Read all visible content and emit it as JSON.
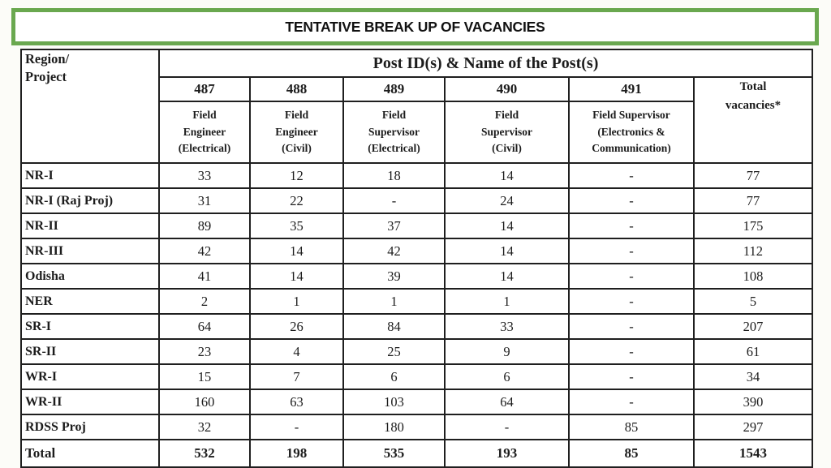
{
  "title": "TENTATIVE BREAK UP OF VACANCIES",
  "colors": {
    "accent_green": "#6aa84f",
    "border_black": "#1f1f1f",
    "background": "#ffffff"
  },
  "table": {
    "region_header": "Region/\nProject",
    "post_group_header": "Post ID(s) & Name of the Post(s)",
    "total_header": "Total\nvacancies*",
    "columns": [
      {
        "id": "487",
        "name": "Field\nEngineer\n(Electrical)"
      },
      {
        "id": "488",
        "name": "Field\nEngineer\n(Civil)"
      },
      {
        "id": "489",
        "name": "Field\nSupervisor\n(Electrical)"
      },
      {
        "id": "490",
        "name": "Field\nSupervisor\n(Civil)"
      },
      {
        "id": "491",
        "name": "Field Supervisor\n(Electronics &\nCommunication)"
      }
    ],
    "rows": [
      {
        "region": "NR-I",
        "values": [
          "33",
          "12",
          "18",
          "14",
          "-",
          "77"
        ]
      },
      {
        "region": "NR-I (Raj Proj)",
        "values": [
          "31",
          "22",
          "-",
          "24",
          "-",
          "77"
        ]
      },
      {
        "region": "NR-II",
        "values": [
          "89",
          "35",
          "37",
          "14",
          "-",
          "175"
        ]
      },
      {
        "region": "NR-III",
        "values": [
          "42",
          "14",
          "42",
          "14",
          "-",
          "112"
        ]
      },
      {
        "region": "Odisha",
        "values": [
          "41",
          "14",
          "39",
          "14",
          "-",
          "108"
        ]
      },
      {
        "region": "NER",
        "values": [
          "2",
          "1",
          "1",
          "1",
          "-",
          "5"
        ]
      },
      {
        "region": "SR-I",
        "values": [
          "64",
          "26",
          "84",
          "33",
          "-",
          "207"
        ]
      },
      {
        "region": "SR-II",
        "values": [
          "23",
          "4",
          "25",
          "9",
          "-",
          "61"
        ]
      },
      {
        "region": "WR-I",
        "values": [
          "15",
          "7",
          "6",
          "6",
          "-",
          "34"
        ]
      },
      {
        "region": "WR-II",
        "values": [
          "160",
          "63",
          "103",
          "64",
          "-",
          "390"
        ]
      },
      {
        "region": "RDSS Proj",
        "values": [
          "32",
          "-",
          "180",
          "-",
          "85",
          "297"
        ]
      }
    ],
    "total_row": {
      "region": "Total",
      "values": [
        "532",
        "198",
        "535",
        "193",
        "85",
        "1543"
      ]
    }
  }
}
